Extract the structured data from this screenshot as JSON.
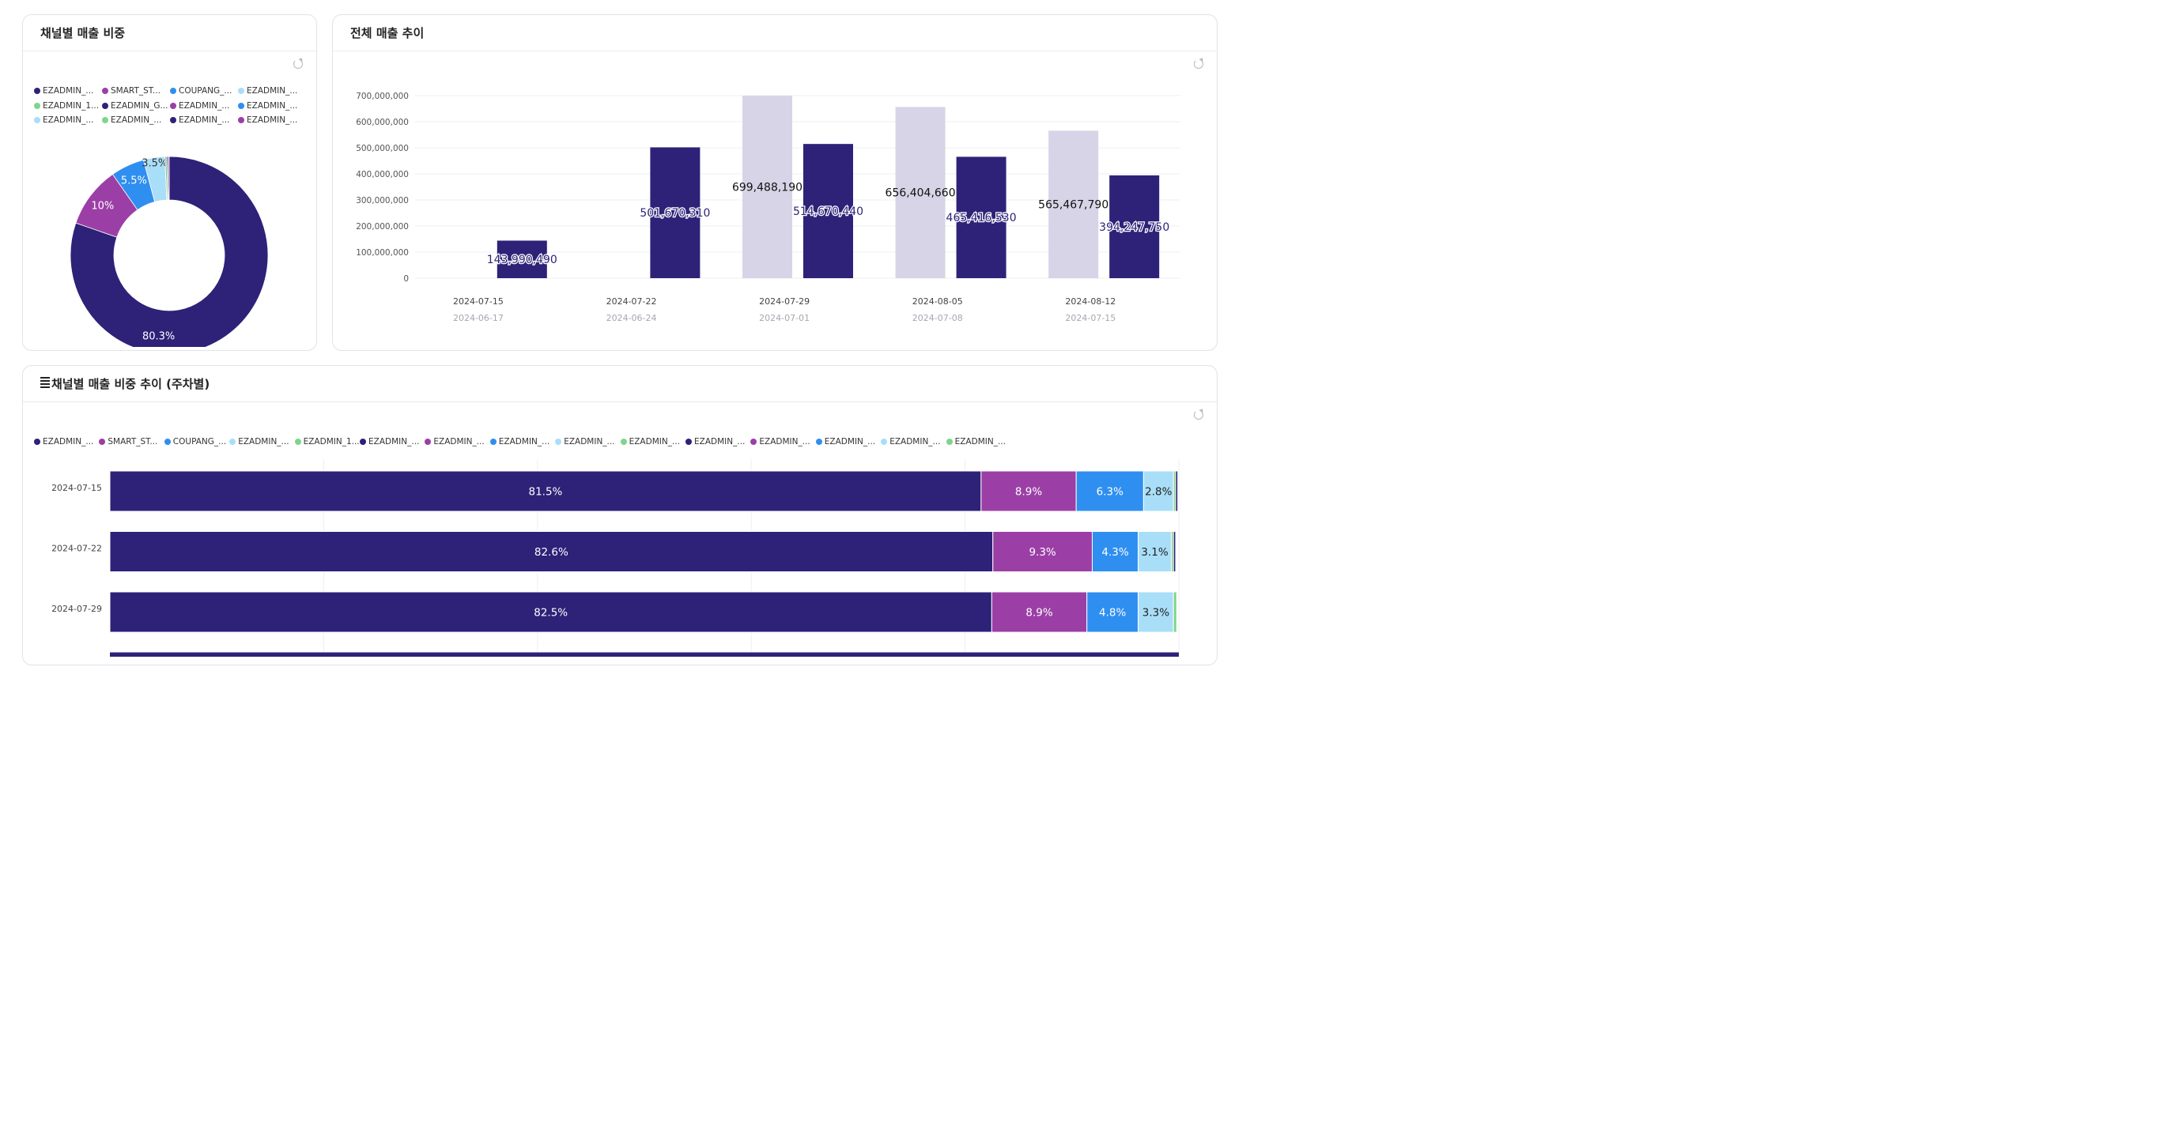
{
  "pie_card": {
    "title": "채널별 매출 비중",
    "legend": [
      {
        "label": "EZADMIN_...",
        "color": "#2d2278"
      },
      {
        "label": "SMART_ST...",
        "color": "#9b3fa6"
      },
      {
        "label": "COUPANG_...",
        "color": "#2f8ff0"
      },
      {
        "label": "EZADMIN_...",
        "color": "#a9def8"
      },
      {
        "label": "EZADMIN_1...",
        "color": "#7ed58c"
      },
      {
        "label": "EZADMIN_G...",
        "color": "#2d2278"
      },
      {
        "label": "EZADMIN_...",
        "color": "#9b3fa6"
      },
      {
        "label": "EZADMIN_...",
        "color": "#2f8ff0"
      },
      {
        "label": "EZADMIN_...",
        "color": "#a9def8"
      },
      {
        "label": "EZADMIN_...",
        "color": "#7ed58c"
      },
      {
        "label": "EZADMIN_...",
        "color": "#2d2278"
      },
      {
        "label": "EZADMIN_...",
        "color": "#9b3fa6"
      }
    ]
  },
  "bar_card": {
    "title": "전체 매출 추이"
  },
  "stack_card": {
    "title": "채널별 매출 비중 추이 (주차별)",
    "legend": [
      {
        "label": "EZADMIN_...",
        "color": "#2d2278"
      },
      {
        "label": "SMART_ST...",
        "color": "#9b3fa6"
      },
      {
        "label": "COUPANG_...",
        "color": "#2f8ff0"
      },
      {
        "label": "EZADMIN_...",
        "color": "#a9def8"
      },
      {
        "label": "EZADMIN_1...",
        "color": "#7ed58c"
      },
      {
        "label": "EZADMIN_...",
        "color": "#2d2278"
      },
      {
        "label": "EZADMIN_...",
        "color": "#9b3fa6"
      },
      {
        "label": "EZADMIN_...",
        "color": "#2f8ff0"
      },
      {
        "label": "EZADMIN_...",
        "color": "#a9def8"
      },
      {
        "label": "EZADMIN_...",
        "color": "#7ed58c"
      },
      {
        "label": "EZADMIN_...",
        "color": "#2d2278"
      },
      {
        "label": "EZADMIN_...",
        "color": "#9b3fa6"
      },
      {
        "label": "EZADMIN_...",
        "color": "#2f8ff0"
      },
      {
        "label": "EZADMIN_...",
        "color": "#a9def8"
      },
      {
        "label": "EZADMIN_...",
        "color": "#7ed58c"
      }
    ]
  },
  "chart_data": [
    {
      "type": "pie",
      "variant": "donut",
      "title": "채널별 매출 비중",
      "slices": [
        {
          "name": "EZADMIN_...",
          "value": 80.3,
          "label": "80.3%",
          "color": "#2d2278"
        },
        {
          "name": "SMART_ST...",
          "value": 10.0,
          "label": "10%",
          "color": "#9b3fa6"
        },
        {
          "name": "COUPANG_...",
          "value": 5.5,
          "label": "5.5%",
          "color": "#2f8ff0"
        },
        {
          "name": "EZADMIN_...",
          "value": 3.5,
          "label": "3.5%",
          "color": "#a9def8"
        },
        {
          "name": "EZADMIN_1...",
          "value": 0.3,
          "label": "",
          "color": "#7ed58c"
        },
        {
          "name": "EZADMIN_G...",
          "value": 0.2,
          "label": "",
          "color": "#2d2278"
        },
        {
          "name": "EZADMIN_...",
          "value": 0.2,
          "label": "",
          "color": "#9b3fa6"
        }
      ]
    },
    {
      "type": "bar",
      "title": "전체 매출 추이",
      "categories": [
        "2024-07-15",
        "2024-07-22",
        "2024-07-29",
        "2024-08-05",
        "2024-08-12"
      ],
      "sub_categories": [
        "2024-06-17",
        "2024-06-24",
        "2024-07-01",
        "2024-07-08",
        "2024-07-15"
      ],
      "series": [
        {
          "name": "previous",
          "color": "#d6d4e6",
          "values": [
            null,
            null,
            699488190,
            656404660,
            565467790
          ],
          "labels": [
            "",
            "",
            "699,488,190",
            "656,404,660",
            "565,467,790"
          ]
        },
        {
          "name": "current",
          "color": "#2d2278",
          "values": [
            143990490,
            501670310,
            514670440,
            465416530,
            394247750
          ],
          "labels": [
            "143,990,490",
            "501,670,310",
            "514,670,440",
            "465,416,530",
            "394,247,750"
          ]
        }
      ],
      "ylim": [
        0,
        700000000
      ],
      "yticks": [
        0,
        100000000,
        200000000,
        300000000,
        400000000,
        500000000,
        600000000,
        700000000
      ],
      "ytick_labels": [
        "0",
        "100,000,000",
        "200,000,000",
        "300,000,000",
        "400,000,000",
        "500,000,000",
        "600,000,000",
        "700,000,000"
      ],
      "grid": true
    },
    {
      "type": "bar",
      "orientation": "horizontal",
      "stacked": true,
      "title": "채널별 매출 비중 추이 (주차별)",
      "categories": [
        "2024-07-15",
        "2024-07-22",
        "2024-07-29"
      ],
      "xlim": [
        0,
        100
      ],
      "rows": [
        {
          "segments": [
            {
              "value": 81.5,
              "label": "81.5%",
              "color": "#2d2278"
            },
            {
              "value": 8.9,
              "label": "8.9%",
              "color": "#9b3fa6"
            },
            {
              "value": 6.3,
              "label": "6.3%",
              "color": "#2f8ff0"
            },
            {
              "value": 2.8,
              "label": "2.8%",
              "color": "#a9def8"
            },
            {
              "value": 0.2,
              "label": "",
              "color": "#7ed58c"
            },
            {
              "value": 0.2,
              "label": "",
              "color": "#2d2278"
            }
          ]
        },
        {
          "segments": [
            {
              "value": 82.6,
              "label": "82.6%",
              "color": "#2d2278"
            },
            {
              "value": 9.3,
              "label": "9.3%",
              "color": "#9b3fa6"
            },
            {
              "value": 4.3,
              "label": "4.3%",
              "color": "#2f8ff0"
            },
            {
              "value": 3.1,
              "label": "3.1%",
              "color": "#a9def8"
            },
            {
              "value": 0.2,
              "label": "",
              "color": "#7ed58c"
            },
            {
              "value": 0.2,
              "label": "",
              "color": "#2d2278"
            }
          ]
        },
        {
          "segments": [
            {
              "value": 82.5,
              "label": "82.5%",
              "color": "#2d2278"
            },
            {
              "value": 8.9,
              "label": "8.9%",
              "color": "#9b3fa6"
            },
            {
              "value": 4.8,
              "label": "4.8%",
              "color": "#2f8ff0"
            },
            {
              "value": 3.3,
              "label": "3.3%",
              "color": "#a9def8"
            },
            {
              "value": 0.3,
              "label": "",
              "color": "#7ed58c"
            }
          ]
        }
      ]
    }
  ]
}
